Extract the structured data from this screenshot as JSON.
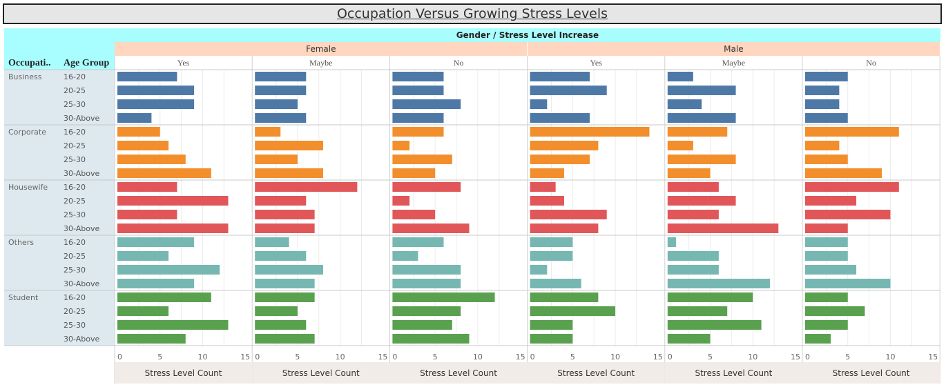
{
  "page": {
    "title": "Occupation Versus Growing Stress Levels"
  },
  "colors": {
    "Business": "#4e79a7",
    "Corporate": "#f28e2b",
    "Housewife": "#e15759",
    "Others": "#76b7b2",
    "Student": "#59a14f",
    "header_cyan": "#a8fefe",
    "header_gender": "#ffd6bf",
    "row_band": "#dde9ef",
    "axis_band": "#f1ece8"
  },
  "chart_data": {
    "type": "bar",
    "orientation": "horizontal",
    "title": "Occupation Versus Growing Stress Levels",
    "column_header": "Gender  /  Stress Level Increase",
    "row_headers": [
      "Occupati..",
      "Age Group"
    ],
    "genders": [
      "Female",
      "Male"
    ],
    "stress_levels": [
      "Yes",
      "Maybe",
      "No"
    ],
    "occupations": [
      "Business",
      "Corporate",
      "Housewife",
      "Others",
      "Student"
    ],
    "age_groups": [
      "16-20",
      "20-25",
      "25-30",
      "30-Above"
    ],
    "xlabel": "Stress Level Count",
    "xlim": [
      0,
      15
    ],
    "ticks": [
      0,
      5,
      10,
      15
    ],
    "values": {
      "Business": [
        [
          7,
          6,
          6,
          7,
          3,
          5
        ],
        [
          9,
          6,
          6,
          9,
          8,
          4
        ],
        [
          9,
          5,
          8,
          2,
          4,
          4
        ],
        [
          4,
          6,
          6,
          7,
          8,
          5
        ]
      ],
      "Corporate": [
        [
          5,
          3,
          6,
          14,
          7,
          11
        ],
        [
          6,
          8,
          2,
          8,
          3,
          4
        ],
        [
          8,
          5,
          7,
          7,
          8,
          5
        ],
        [
          11,
          8,
          5,
          4,
          5,
          9
        ]
      ],
      "Housewife": [
        [
          7,
          12,
          8,
          3,
          6,
          11
        ],
        [
          13,
          6,
          2,
          4,
          8,
          6
        ],
        [
          7,
          7,
          5,
          9,
          6,
          10
        ],
        [
          13,
          7,
          9,
          8,
          13,
          5
        ]
      ],
      "Others": [
        [
          9,
          4,
          6,
          5,
          1,
          5
        ],
        [
          6,
          6,
          3,
          5,
          6,
          5
        ],
        [
          12,
          8,
          8,
          2,
          6,
          6
        ],
        [
          9,
          7,
          8,
          6,
          12,
          10
        ]
      ],
      "Student": [
        [
          11,
          7,
          12,
          8,
          10,
          5
        ],
        [
          6,
          5,
          8,
          10,
          7,
          7
        ],
        [
          13,
          6,
          7,
          5,
          11,
          5
        ],
        [
          8,
          7,
          9,
          5,
          5,
          3
        ]
      ]
    }
  }
}
